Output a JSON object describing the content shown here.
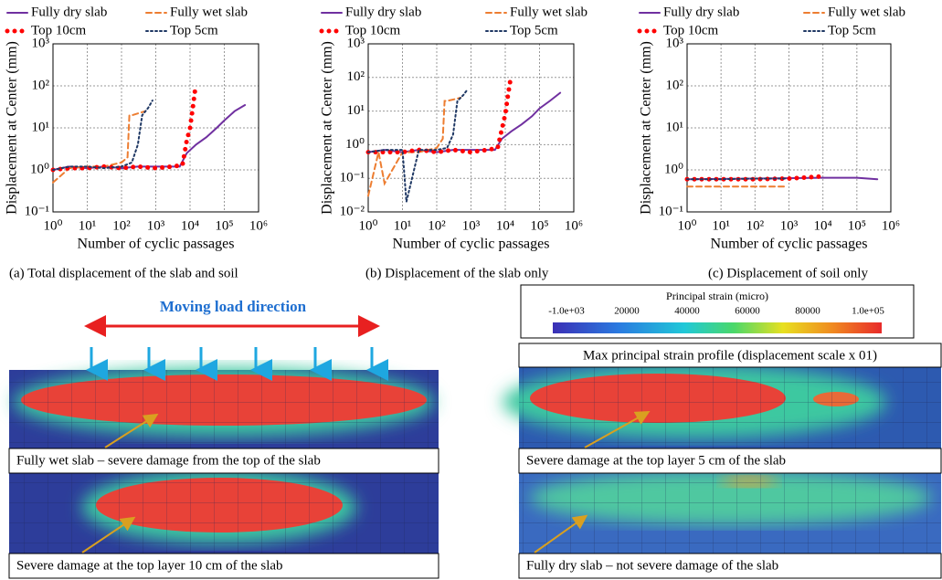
{
  "chart_data": [
    {
      "type": "line",
      "caption": "(a)  Total displacement of the slab and soil",
      "xlabel": "Number of cyclic passages",
      "ylabel": "Displacement at Center (mm)",
      "log_x": true,
      "log_y": true,
      "grid": true,
      "xlim": [
        1,
        1000000
      ],
      "xticks": [
        {
          "value": 1,
          "label": "10⁰"
        },
        {
          "value": 10,
          "label": "10¹"
        },
        {
          "value": 100,
          "label": "10²"
        },
        {
          "value": 1000,
          "label": "10³"
        },
        {
          "value": 10000,
          "label": "10⁴"
        },
        {
          "value": 100000,
          "label": "10⁵"
        },
        {
          "value": 1000000,
          "label": "10⁶"
        }
      ],
      "ylim": [
        0.1,
        1000
      ],
      "yticks": [
        {
          "value": 0.1,
          "label": "10⁻¹"
        },
        {
          "value": 1,
          "label": "10⁰"
        },
        {
          "value": 10,
          "label": "10¹"
        },
        {
          "value": 100,
          "label": "10²"
        },
        {
          "value": 1000,
          "label": "10³"
        }
      ],
      "series": [
        {
          "name": "Fully dry slab",
          "color": "#7030a0",
          "style": "solid",
          "x": [
            1,
            3,
            10,
            30,
            100,
            300,
            1000,
            5000,
            8000,
            15000,
            30000,
            60000,
            100000,
            200000,
            400000
          ],
          "values": [
            1,
            1.2,
            1.1,
            1.2,
            1.1,
            1.2,
            1.2,
            1.2,
            2.5,
            4,
            6,
            10,
            15,
            25,
            35
          ]
        },
        {
          "name": "Fully wet slab",
          "color": "#ed7d31",
          "style": "dashed",
          "x": [
            1,
            3,
            10,
            30,
            100,
            150,
            170,
            200,
            300,
            500
          ],
          "values": [
            0.5,
            1.1,
            1.2,
            1.2,
            1.5,
            2,
            20,
            20,
            22,
            25
          ]
        },
        {
          "name": "Top 10cm",
          "color": "#ff0000",
          "style": "dots",
          "x": [
            1,
            3,
            10,
            30,
            100,
            300,
            1000,
            3000,
            6000,
            8000,
            10000,
            12000,
            14000
          ],
          "values": [
            1,
            1.1,
            1.1,
            1.2,
            1.1,
            1.2,
            1.1,
            1.2,
            1.3,
            5,
            10,
            30,
            80
          ]
        },
        {
          "name": "Top 5cm",
          "color": "#1f3864",
          "style": "dotted",
          "x": [
            1,
            3,
            10,
            30,
            100,
            200,
            300,
            400,
            600,
            800
          ],
          "values": [
            1,
            1.2,
            1.2,
            1.1,
            1.2,
            1.5,
            4,
            20,
            30,
            45
          ]
        }
      ]
    },
    {
      "type": "line",
      "caption": "(b) Displacement of the slab only",
      "xlabel": "Number of cyclic passages",
      "ylabel": "Displacement at Center (mm)",
      "log_x": true,
      "log_y": true,
      "grid": true,
      "xlim": [
        1,
        1000000
      ],
      "xticks": [
        {
          "value": 1,
          "label": "10⁰"
        },
        {
          "value": 10,
          "label": "10¹"
        },
        {
          "value": 100,
          "label": "10²"
        },
        {
          "value": 1000,
          "label": "10³"
        },
        {
          "value": 10000,
          "label": "10⁴"
        },
        {
          "value": 100000,
          "label": "10⁵"
        },
        {
          "value": 1000000,
          "label": "10⁶"
        }
      ],
      "ylim": [
        0.01,
        1000
      ],
      "yticks": [
        {
          "value": 0.01,
          "label": "10⁻²"
        },
        {
          "value": 0.1,
          "label": "10⁻¹"
        },
        {
          "value": 1,
          "label": "10⁰"
        },
        {
          "value": 10,
          "label": "10¹"
        },
        {
          "value": 100,
          "label": "10²"
        },
        {
          "value": 1000,
          "label": "10³"
        }
      ],
      "series": [
        {
          "name": "Fully dry slab",
          "color": "#7030a0",
          "style": "solid",
          "x": [
            1,
            3,
            10,
            30,
            100,
            300,
            1000,
            5000,
            8000,
            15000,
            30000,
            60000,
            100000,
            200000,
            400000
          ],
          "values": [
            0.6,
            0.7,
            0.6,
            0.7,
            0.6,
            0.7,
            0.7,
            0.7,
            1.5,
            2.5,
            4,
            7,
            12,
            20,
            35
          ]
        },
        {
          "name": "Fully wet slab",
          "color": "#ed7d31",
          "style": "dashed",
          "x": [
            1,
            2,
            3,
            10,
            30,
            100,
            150,
            170,
            200,
            300,
            500
          ],
          "values": [
            0.03,
            0.6,
            0.07,
            0.6,
            0.6,
            0.8,
            1.5,
            20,
            20,
            22,
            25
          ]
        },
        {
          "name": "Top 10cm",
          "color": "#ff0000",
          "style": "dots",
          "x": [
            1,
            3,
            10,
            30,
            100,
            300,
            1000,
            3000,
            6000,
            8000,
            10000,
            12000,
            14000
          ],
          "values": [
            0.6,
            0.6,
            0.6,
            0.7,
            0.6,
            0.7,
            0.6,
            0.7,
            0.8,
            3,
            8,
            30,
            80
          ]
        },
        {
          "name": "Top 5cm",
          "color": "#1f3864",
          "style": "dotted",
          "x": [
            1,
            3,
            10,
            13,
            30,
            100,
            200,
            300,
            400,
            600,
            800
          ],
          "values": [
            0.6,
            0.7,
            0.7,
            0.02,
            0.7,
            0.7,
            0.8,
            2,
            20,
            30,
            45
          ]
        }
      ]
    },
    {
      "type": "line",
      "caption": "(c) Displacement of soil only",
      "xlabel": "Number of cyclic passages",
      "ylabel": "Displacement at Center (mm)",
      "log_x": true,
      "log_y": true,
      "grid": true,
      "xlim": [
        1,
        1000000
      ],
      "xticks": [
        {
          "value": 1,
          "label": "10⁰"
        },
        {
          "value": 10,
          "label": "10¹"
        },
        {
          "value": 100,
          "label": "10²"
        },
        {
          "value": 1000,
          "label": "10³"
        },
        {
          "value": 10000,
          "label": "10⁴"
        },
        {
          "value": 100000,
          "label": "10⁵"
        },
        {
          "value": 1000000,
          "label": "10⁶"
        }
      ],
      "ylim": [
        0.1,
        1000
      ],
      "yticks": [
        {
          "value": 0.1,
          "label": "10⁻¹"
        },
        {
          "value": 1,
          "label": "10⁰"
        },
        {
          "value": 10,
          "label": "10¹"
        },
        {
          "value": 100,
          "label": "10²"
        },
        {
          "value": 1000,
          "label": "10³"
        }
      ],
      "series": [
        {
          "name": "Fully dry slab",
          "color": "#7030a0",
          "style": "solid",
          "x": [
            1,
            100,
            10000,
            100000,
            400000
          ],
          "values": [
            0.6,
            0.62,
            0.65,
            0.65,
            0.6
          ]
        },
        {
          "name": "Fully wet slab",
          "color": "#ed7d31",
          "style": "dashed",
          "x": [
            1,
            10,
            100,
            800
          ],
          "values": [
            0.4,
            0.4,
            0.4,
            0.4
          ]
        },
        {
          "name": "Top 10cm",
          "color": "#ff0000",
          "style": "dots",
          "x": [
            1,
            10,
            100,
            1000,
            10000
          ],
          "values": [
            0.6,
            0.6,
            0.6,
            0.62,
            0.7
          ]
        },
        {
          "name": "Top 5cm",
          "color": "#1f3864",
          "style": "dotted",
          "x": [
            1,
            10,
            100,
            800
          ],
          "values": [
            0.6,
            0.6,
            0.62,
            0.62
          ]
        }
      ]
    }
  ],
  "figures": {
    "load_direction": "Moving load direction",
    "colorbar": {
      "title": "Principal strain (micro)",
      "labels": [
        "-1.0e+03",
        "20000",
        "40000",
        "60000",
        "80000",
        "1.0e+05"
      ]
    },
    "profile_title": "Max principal strain profile (displacement scale x 01)",
    "panels": [
      "Fully wet slab – severe damage from the top of the slab",
      "Severe damage at the top layer 10 cm of the slab",
      "Severe damage at the top layer 5 cm of the slab",
      "Fully dry slab – not severe damage of the slab"
    ]
  }
}
